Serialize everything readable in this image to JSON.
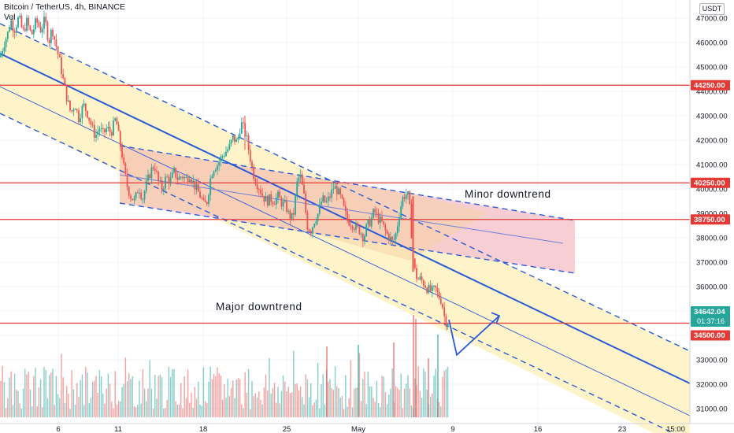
{
  "header": {
    "symbol_line": "Bitcoin / TetherUS, 4h, BINANCE",
    "volume_label": "Vol",
    "currency_button": "USDT"
  },
  "annotations": {
    "minor_label": "Minor downtrend",
    "major_label": "Major downtrend"
  },
  "colors": {
    "background": "#ffffff",
    "grid": "#f0f3fa",
    "level_line": "#e53935",
    "trend_line": "#2a5bd7",
    "major_channel_fill": "#fff3c4",
    "minor_channel_fill": "#f8c9d0",
    "candle_up": "#26a69a",
    "candle_down": "#ef5350",
    "current_price_badge": "#26a69a",
    "level_badge": "#e53935"
  },
  "chart_data": {
    "type": "candlestick",
    "x_axis": {
      "tick_labels": [
        "6",
        "11",
        "18",
        "25",
        "May",
        "9",
        "16",
        "23",
        "15:00"
      ]
    },
    "y_axis": {
      "ylim": [
        30800,
        47600
      ],
      "tick_values": [
        31000,
        32000,
        33000,
        34000,
        35000,
        36000,
        37000,
        38000,
        39000,
        40000,
        41000,
        42000,
        43000,
        44000,
        45000,
        46000,
        47000
      ],
      "tick_labels": [
        "31000.00",
        "32000.00",
        "33000.00",
        "34000.00",
        "35000.00",
        "36000.00",
        "37000.00",
        "38000.00",
        "39000.00",
        "40000.00",
        "41000.00",
        "42000.00",
        "43000.00",
        "44000.00",
        "45000.00",
        "46000.00",
        "47000.00"
      ]
    },
    "horizontal_levels": [
      {
        "value": 44250,
        "label": "44250.00"
      },
      {
        "value": 40250,
        "label": "40250.00"
      },
      {
        "value": 38750,
        "label": "38750.00"
      },
      {
        "value": 34500,
        "label": "34500.00"
      }
    ],
    "current_price": {
      "value": 34642.04,
      "label": "34642.04",
      "countdown": "01:37:16"
    },
    "price_path": [
      [
        0,
        45400
      ],
      [
        5,
        45950
      ],
      [
        10,
        46400
      ],
      [
        14,
        46900
      ],
      [
        18,
        46500
      ],
      [
        24,
        47050
      ],
      [
        29,
        46400
      ],
      [
        34,
        46850
      ],
      [
        40,
        46300
      ],
      [
        46,
        46900
      ],
      [
        52,
        46500
      ],
      [
        57,
        46950
      ],
      [
        62,
        46000
      ],
      [
        66,
        46600
      ],
      [
        71,
        45900
      ],
      [
        76,
        45200
      ],
      [
        80,
        44500
      ],
      [
        85,
        43700
      ],
      [
        90,
        43100
      ],
      [
        95,
        43500
      ],
      [
        100,
        42900
      ],
      [
        106,
        43450
      ],
      [
        111,
        43100
      ],
      [
        116,
        42600
      ],
      [
        121,
        42150
      ],
      [
        126,
        42500
      ],
      [
        131,
        42250
      ],
      [
        136,
        42500
      ],
      [
        141,
        42300
      ],
      [
        147,
        42900
      ],
      [
        152,
        41900
      ],
      [
        155,
        41400
      ],
      [
        158,
        40700
      ],
      [
        162,
        40050
      ],
      [
        166,
        39700
      ],
      [
        171,
        39500
      ],
      [
        176,
        40100
      ],
      [
        181,
        39600
      ],
      [
        186,
        40200
      ],
      [
        191,
        40700
      ],
      [
        196,
        41000
      ],
      [
        201,
        40300
      ],
      [
        206,
        40000
      ],
      [
        211,
        40500
      ],
      [
        216,
        40300
      ],
      [
        221,
        40700
      ],
      [
        226,
        40400
      ],
      [
        231,
        40550
      ],
      [
        236,
        40400
      ],
      [
        241,
        40600
      ],
      [
        246,
        40200
      ],
      [
        251,
        39900
      ],
      [
        256,
        39600
      ],
      [
        259,
        39300
      ],
      [
        263,
        39500
      ],
      [
        268,
        40600
      ],
      [
        272,
        40900
      ],
      [
        276,
        41000
      ],
      [
        281,
        41300
      ],
      [
        286,
        41500
      ],
      [
        291,
        41700
      ],
      [
        296,
        42100
      ],
      [
        301,
        41900
      ],
      [
        306,
        42700
      ],
      [
        309,
        42500
      ],
      [
        313,
        42100
      ],
      [
        317,
        41400
      ],
      [
        321,
        40700
      ],
      [
        325,
        40300
      ],
      [
        330,
        40000
      ],
      [
        334,
        39700
      ],
      [
        339,
        39500
      ],
      [
        343,
        39600
      ],
      [
        348,
        39500
      ],
      [
        353,
        39700
      ],
      [
        358,
        39400
      ],
      [
        363,
        39300
      ],
      [
        367,
        38900
      ],
      [
        372,
        38800
      ],
      [
        377,
        40200
      ],
      [
        381,
        40600
      ],
      [
        386,
        39700
      ],
      [
        390,
        38500
      ],
      [
        395,
        38300
      ],
      [
        399,
        38700
      ],
      [
        404,
        39000
      ],
      [
        409,
        39600
      ],
      [
        414,
        39400
      ],
      [
        419,
        39700
      ],
      [
        424,
        40100
      ],
      [
        429,
        39900
      ],
      [
        434,
        39500
      ],
      [
        438,
        39000
      ],
      [
        442,
        38700
      ],
      [
        447,
        38600
      ],
      [
        452,
        38400
      ],
      [
        457,
        38300
      ],
      [
        462,
        38000
      ],
      [
        466,
        38500
      ],
      [
        471,
        38700
      ],
      [
        475,
        39100
      ],
      [
        480,
        38800
      ],
      [
        485,
        38600
      ],
      [
        490,
        38200
      ],
      [
        495,
        38000
      ],
      [
        499,
        37800
      ],
      [
        503,
        38200
      ],
      [
        507,
        39000
      ],
      [
        511,
        39600
      ],
      [
        515,
        39800
      ],
      [
        519,
        39700
      ],
      [
        522,
        38400
      ],
      [
        524,
        37300
      ],
      [
        527,
        36600
      ],
      [
        530,
        36300
      ],
      [
        534,
        36300
      ],
      [
        538,
        36150
      ],
      [
        543,
        35900
      ],
      [
        548,
        35800
      ],
      [
        553,
        35900
      ],
      [
        557,
        35600
      ],
      [
        561,
        35400
      ],
      [
        564,
        34800
      ],
      [
        567,
        34500
      ],
      [
        570,
        34640
      ]
    ],
    "projection_path": [
      [
        570,
        34640
      ],
      [
        580,
        33200
      ],
      [
        634,
        34800
      ]
    ]
  }
}
